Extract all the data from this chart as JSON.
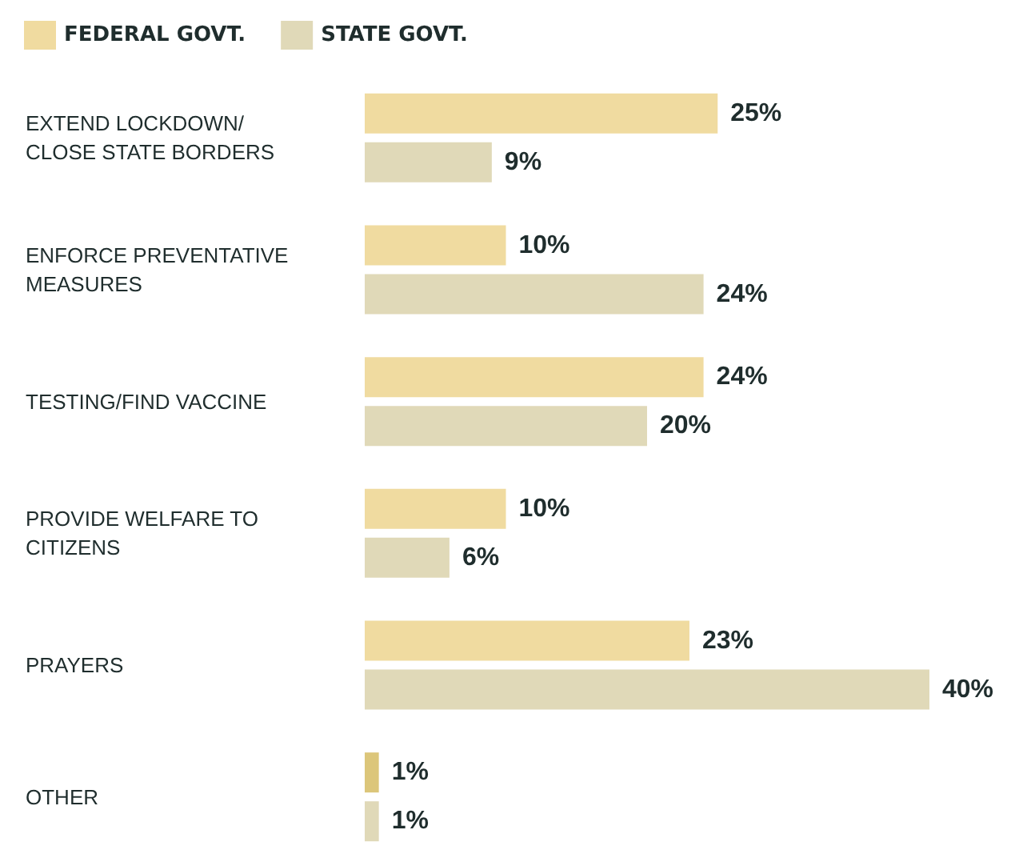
{
  "chart_data": {
    "type": "bar",
    "orientation": "horizontal",
    "categories": [
      "EXTEND LOCKDOWN/ CLOSE STATE BORDERS",
      "ENFORCE PREVENTATIVE MEASURES",
      "TESTING/FIND VACCINE",
      "PROVIDE WELFARE TO CITIZENS",
      "PRAYERS",
      "OTHER"
    ],
    "series": [
      {
        "name": "FEDERAL GOVT.",
        "color": "#f0dba0",
        "colors": [
          "#f0dba0",
          "#f0dba0",
          "#f0dba0",
          "#f0dba0",
          "#f0dba0",
          "#dcc67a"
        ],
        "values": [
          25,
          10,
          24,
          10,
          23,
          1
        ],
        "value_labels": [
          "25%",
          "10%",
          "24%",
          "10%",
          "23%",
          "1%"
        ]
      },
      {
        "name": "STATE GOVT.",
        "color": "#e0d9b8",
        "values": [
          9,
          24,
          20,
          6,
          40,
          1
        ],
        "value_labels": [
          "9%",
          "24%",
          "20%",
          "6%",
          "40%",
          "1%"
        ]
      }
    ],
    "legend": "top left"
  }
}
